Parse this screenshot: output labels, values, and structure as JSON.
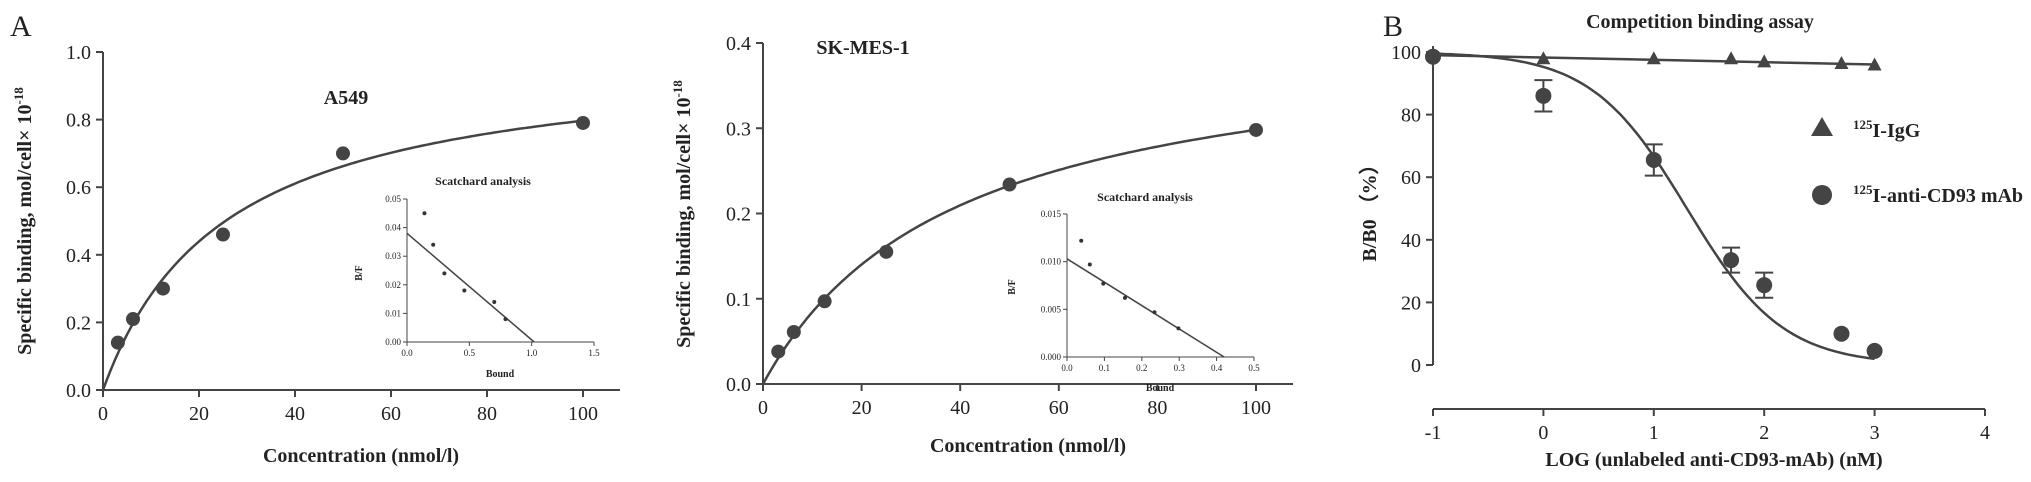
{
  "figure": {
    "panel_letters": [
      "A",
      "B"
    ]
  },
  "chart_data": [
    {
      "type": "scatter",
      "title": "A549",
      "xlabel": "Concentration (nmol/l)",
      "ylabel": "Specific binding, mol/cell× 10",
      "ylabel_sup": "-18",
      "xlim": [
        0,
        100
      ],
      "ylim": [
        0,
        1.0
      ],
      "xticks": [
        0,
        20,
        40,
        60,
        80,
        100
      ],
      "yticks": [
        0.0,
        0.2,
        0.4,
        0.6,
        0.8,
        1.0
      ],
      "xtick_labels": [
        "0",
        "20",
        "40",
        "60",
        "80",
        "100"
      ],
      "ytick_labels": [
        "0.0",
        "0.2",
        "0.4",
        "0.6",
        "0.8",
        "1.0"
      ],
      "series": [
        {
          "x": [
            3.1,
            6.25,
            12.5,
            25,
            50,
            100
          ],
          "values": [
            0.14,
            0.21,
            0.3,
            0.46,
            0.7,
            0.79
          ]
        }
      ],
      "fit": {
        "model": "one-site",
        "bmax": 1.0,
        "kd": 25.5
      },
      "inset": {
        "title": "Scatchard analysis",
        "xlabel": "Bound",
        "ylabel": "B/F",
        "xlim": [
          0,
          1.5
        ],
        "ylim": [
          0,
          0.05
        ],
        "xticks": [
          0,
          0.5,
          1.0,
          1.5
        ],
        "yticks": [
          0,
          0.01,
          0.02,
          0.03,
          0.04,
          0.05
        ],
        "xtick_labels": [
          "0.0",
          "0.5",
          "1.0",
          "1.5"
        ],
        "ytick_labels": [
          "0.00",
          "0.01",
          "0.02",
          "0.03",
          "0.04",
          "0.05"
        ],
        "points_x": [
          0.14,
          0.21,
          0.3,
          0.46,
          0.7,
          0.79
        ],
        "points_y": [
          0.045,
          0.034,
          0.024,
          0.018,
          0.014,
          0.008
        ],
        "line": [
          [
            0,
            0.038
          ],
          [
            1.02,
            0
          ]
        ]
      }
    },
    {
      "type": "scatter",
      "title": "SK-MES-1",
      "xlabel": "Concentration (nmol/l)",
      "ylabel": "Specific binding, mol/cell× 10",
      "ylabel_sup": "-18",
      "xlim": [
        0,
        100
      ],
      "ylim": [
        0,
        0.4
      ],
      "xticks": [
        0,
        20,
        40,
        60,
        80,
        100
      ],
      "yticks": [
        0.0,
        0.1,
        0.2,
        0.3,
        0.4
      ],
      "xtick_labels": [
        "0",
        "20",
        "40",
        "60",
        "80",
        "100"
      ],
      "ytick_labels": [
        "0.0",
        "0.1",
        "0.2",
        "0.3",
        "0.4"
      ],
      "series": [
        {
          "x": [
            3.1,
            6.25,
            12.5,
            25,
            50,
            100
          ],
          "values": [
            0.038,
            0.061,
            0.097,
            0.155,
            0.234,
            0.298
          ]
        }
      ],
      "fit": {
        "model": "one-site",
        "bmax": 0.415,
        "kd": 39.2
      },
      "inset": {
        "title": "Scatchard analysis",
        "xlabel": "Bound",
        "ylabel": "B/F",
        "xlim": [
          0,
          0.5
        ],
        "ylim": [
          0,
          0.015
        ],
        "xticks": [
          0,
          0.1,
          0.2,
          0.3,
          0.4,
          0.5
        ],
        "yticks": [
          0,
          0.005,
          0.01,
          0.015
        ],
        "xtick_labels": [
          "0.0",
          "0.1",
          "0.2",
          "0.3",
          "0.4",
          "0.5"
        ],
        "ytick_labels": [
          "0.000",
          "0.005",
          "0.010",
          "0.015"
        ],
        "points_x": [
          0.038,
          0.061,
          0.097,
          0.155,
          0.234,
          0.298
        ],
        "points_y": [
          0.0122,
          0.0097,
          0.0077,
          0.0062,
          0.0047,
          0.003
        ],
        "line": [
          [
            0,
            0.0103
          ],
          [
            0.42,
            0
          ]
        ]
      }
    },
    {
      "type": "scatter",
      "title": "Competition binding assay",
      "xlabel": "LOG (unlabeled anti-CD93-mAb) (nM)",
      "ylabel": "B/B0 （%）",
      "xlim": [
        -1,
        4
      ],
      "ylim": [
        0,
        100
      ],
      "xticks": [
        -1,
        0,
        1,
        2,
        3,
        4
      ],
      "yticks": [
        0,
        20,
        40,
        60,
        80,
        100
      ],
      "xtick_labels": [
        "-1",
        "0",
        "1",
        "2",
        "3",
        "4"
      ],
      "ytick_labels": [
        "0",
        "20",
        "40",
        "60",
        "80",
        "100"
      ],
      "legend_position": "right",
      "series": [
        {
          "name": "I-IgG",
          "name_sup": "125",
          "marker": "triangle",
          "x": [
            -1,
            0,
            1,
            1.7,
            2,
            2.7,
            3
          ],
          "values": [
            99,
            98,
            98,
            98,
            97,
            96.5,
            96
          ],
          "fit": {
            "model": "linear",
            "start": 99,
            "end": 96
          }
        },
        {
          "name": "I-anti-CD93 mAb",
          "name_sup": "125",
          "marker": "circle",
          "x": [
            -1,
            0,
            1,
            1.7,
            2,
            2.7,
            3
          ],
          "values": [
            98.5,
            86,
            65.5,
            33.5,
            25.5,
            10,
            4.5
          ],
          "errors": [
            0,
            5,
            5,
            4,
            4,
            0,
            0
          ],
          "fit": {
            "model": "sigmoid",
            "top": 100,
            "bottom": 0,
            "logic50": 1.3,
            "hill": 1.0
          }
        }
      ]
    }
  ]
}
